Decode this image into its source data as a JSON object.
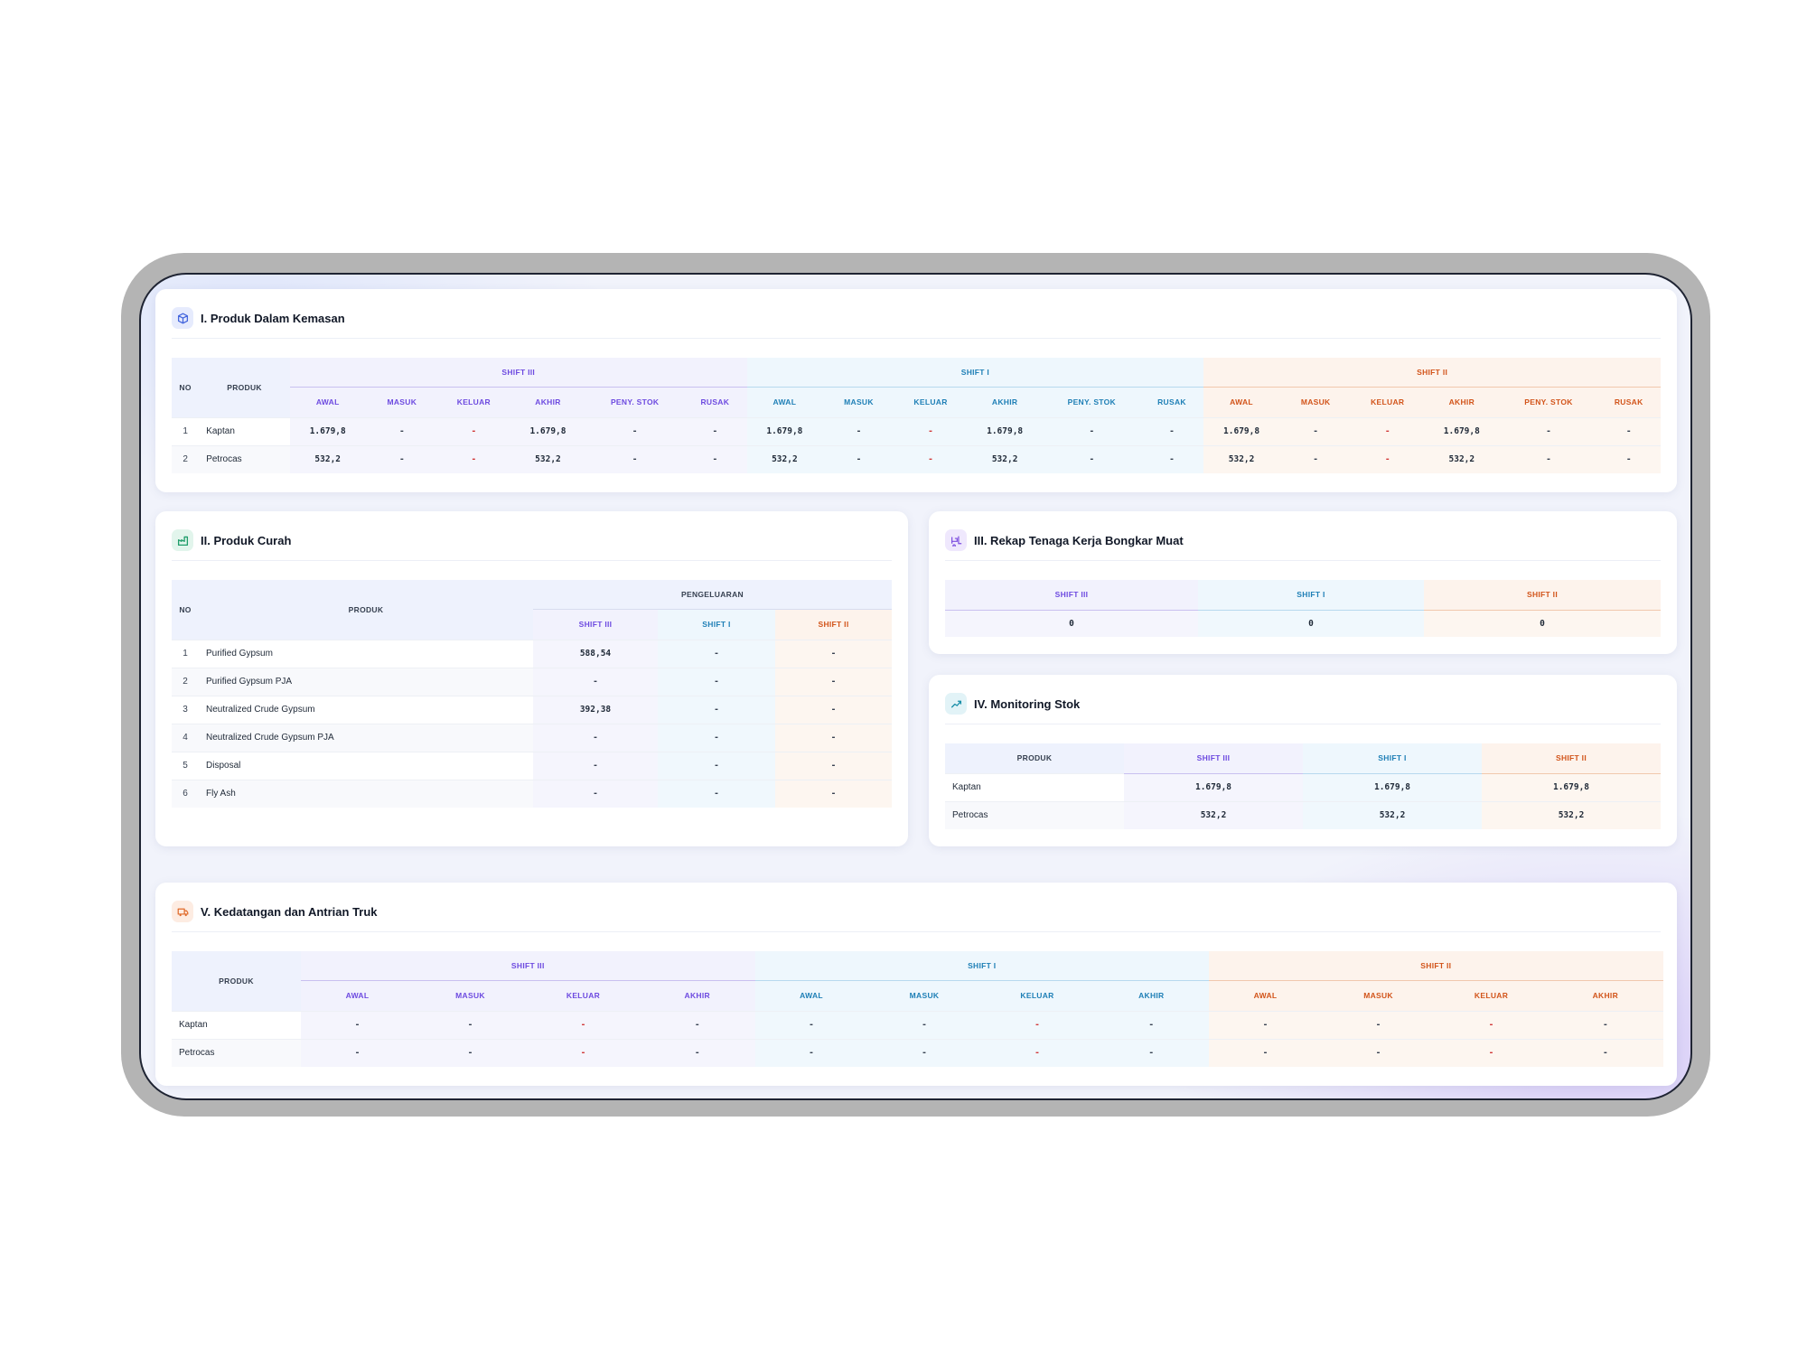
{
  "shift_labels": [
    "SHIFT III",
    "SHIFT I",
    "SHIFT II"
  ],
  "colors": {
    "shift_iii": "#6d4ae0",
    "shift_i": "#1e7fb6",
    "shift_ii": "#d2541a",
    "red_dash": "#d13a3a"
  },
  "section1": {
    "title": "I. Produk Dalam Kemasan",
    "icon": "package-icon",
    "headers": {
      "no": "NO",
      "produk": "PRODUK"
    },
    "columns": [
      "AWAL",
      "MASUK",
      "KELUAR",
      "AKHIR",
      "PENY. STOK",
      "RUSAK"
    ],
    "rows": [
      {
        "no": "1",
        "produk": "Kaptan",
        "s3": [
          "1.679,8",
          "-",
          "-",
          "1.679,8",
          "-",
          "-"
        ],
        "s1": [
          "1.679,8",
          "-",
          "-",
          "1.679,8",
          "-",
          "-"
        ],
        "s2": [
          "1.679,8",
          "-",
          "-",
          "1.679,8",
          "-",
          "-"
        ]
      },
      {
        "no": "2",
        "produk": "Petrocas",
        "s3": [
          "532,2",
          "-",
          "-",
          "532,2",
          "-",
          "-"
        ],
        "s1": [
          "532,2",
          "-",
          "-",
          "532,2",
          "-",
          "-"
        ],
        "s2": [
          "532,2",
          "-",
          "-",
          "532,2",
          "-",
          "-"
        ]
      }
    ]
  },
  "section2": {
    "title": "II. Produk Curah",
    "icon": "factory-icon",
    "headers": {
      "no": "NO",
      "produk": "PRODUK",
      "pengeluaran": "PENGELUARAN"
    },
    "rows": [
      {
        "no": "1",
        "produk": "Purified Gypsum",
        "s3": "588,54",
        "s1": "-",
        "s2": "-"
      },
      {
        "no": "2",
        "produk": "Purified Gypsum PJA",
        "s3": "-",
        "s1": "-",
        "s2": "-"
      },
      {
        "no": "3",
        "produk": "Neutralized Crude Gypsum",
        "s3": "392,38",
        "s1": "-",
        "s2": "-"
      },
      {
        "no": "4",
        "produk": "Neutralized Crude Gypsum PJA",
        "s3": "-",
        "s1": "-",
        "s2": "-"
      },
      {
        "no": "5",
        "produk": "Disposal",
        "s3": "-",
        "s1": "-",
        "s2": "-"
      },
      {
        "no": "6",
        "produk": "Fly Ash",
        "s3": "-",
        "s1": "-",
        "s2": "-"
      }
    ]
  },
  "section3": {
    "title": "III. Rekap Tenaga Kerja Bongkar Muat",
    "icon": "forklift-icon",
    "values": [
      "0",
      "0",
      "0"
    ]
  },
  "section4": {
    "title": "IV. Monitoring Stok",
    "icon": "trending-up-icon",
    "headers": {
      "produk": "PRODUK"
    },
    "rows": [
      {
        "produk": "Kaptan",
        "values": [
          "1.679,8",
          "1.679,8",
          "1.679,8"
        ]
      },
      {
        "produk": "Petrocas",
        "values": [
          "532,2",
          "532,2",
          "532,2"
        ]
      }
    ]
  },
  "section5": {
    "title": "V. Kedatangan dan Antrian Truk",
    "icon": "truck-icon",
    "headers": {
      "produk": "PRODUK"
    },
    "columns": [
      "AWAL",
      "MASUK",
      "KELUAR",
      "AKHIR"
    ],
    "rows": [
      {
        "produk": "Kaptan",
        "s3": [
          "-",
          "-",
          "-",
          "-"
        ],
        "s1": [
          "-",
          "-",
          "-",
          "-"
        ],
        "s2": [
          "-",
          "-",
          "-",
          "-"
        ]
      },
      {
        "produk": "Petrocas",
        "s3": [
          "-",
          "-",
          "-",
          "-"
        ],
        "s1": [
          "-",
          "-",
          "-",
          "-"
        ],
        "s2": [
          "-",
          "-",
          "-",
          "-"
        ]
      }
    ]
  }
}
